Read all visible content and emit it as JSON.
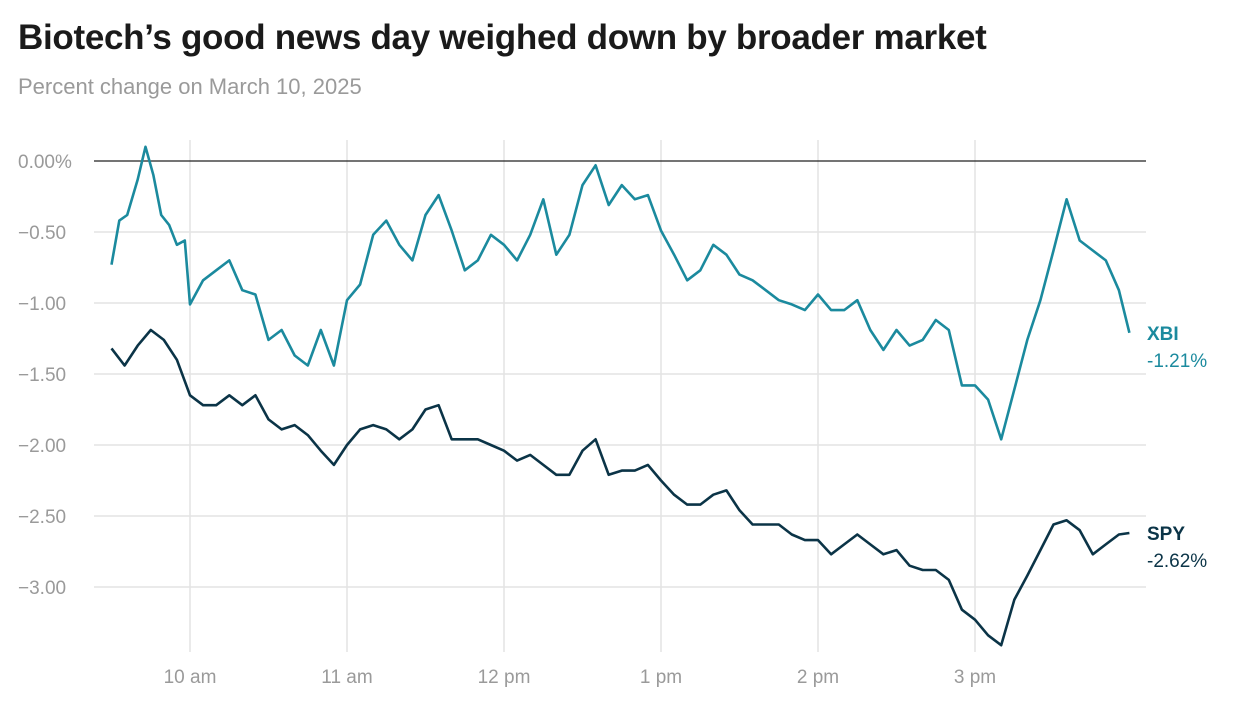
{
  "title": "Biotech’s good news day weighed down by broader market",
  "subtitle": "Percent change on March 10, 2025",
  "chart_data": {
    "type": "line",
    "title": "Biotech’s good news day weighed down by broader market",
    "subtitle": "Percent change on March 10, 2025",
    "xlabel": "",
    "ylabel": "",
    "xlim": [
      "9:30",
      "16:00"
    ],
    "ylim": [
      -3.45,
      0.15
    ],
    "x_ticks": [
      {
        "t": "10:00",
        "label": "10 am"
      },
      {
        "t": "11:00",
        "label": "11 am"
      },
      {
        "t": "12:00",
        "label": "12 pm"
      },
      {
        "t": "13:00",
        "label": "1 pm"
      },
      {
        "t": "14:00",
        "label": "2 pm"
      },
      {
        "t": "15:00",
        "label": "3 pm"
      }
    ],
    "y_ticks": [
      {
        "v": 0,
        "label": "0.00%"
      },
      {
        "v": -0.5,
        "label": "−0.50"
      },
      {
        "v": -1,
        "label": "−1.00"
      },
      {
        "v": -1.5,
        "label": "−1.50"
      },
      {
        "v": -2,
        "label": "−2.00"
      },
      {
        "v": -2.5,
        "label": "−2.50"
      },
      {
        "v": -3,
        "label": "−3.00"
      }
    ],
    "grid": true,
    "legend": "direct labels at right",
    "series": [
      {
        "name": "XBI",
        "end_label": "-1.21%",
        "color": "#1b8a9e",
        "points": [
          [
            "9:30",
            -0.73
          ],
          [
            "9:33",
            -0.42
          ],
          [
            "9:36",
            -0.38
          ],
          [
            "9:40",
            -0.13
          ],
          [
            "9:43",
            0.1
          ],
          [
            "9:46",
            -0.1
          ],
          [
            "9:49",
            -0.38
          ],
          [
            "9:52",
            -0.45
          ],
          [
            "9:55",
            -0.59
          ],
          [
            "9:58",
            -0.56
          ],
          [
            "10:00",
            -1.01
          ],
          [
            "10:05",
            -0.84
          ],
          [
            "10:10",
            -0.77
          ],
          [
            "10:15",
            -0.7
          ],
          [
            "10:20",
            -0.91
          ],
          [
            "10:25",
            -0.94
          ],
          [
            "10:30",
            -1.26
          ],
          [
            "10:35",
            -1.19
          ],
          [
            "10:40",
            -1.37
          ],
          [
            "10:45",
            -1.44
          ],
          [
            "10:50",
            -1.19
          ],
          [
            "10:55",
            -1.44
          ],
          [
            "11:00",
            -0.98
          ],
          [
            "11:05",
            -0.87
          ],
          [
            "11:10",
            -0.52
          ],
          [
            "11:15",
            -0.42
          ],
          [
            "11:20",
            -0.59
          ],
          [
            "11:25",
            -0.7
          ],
          [
            "11:30",
            -0.38
          ],
          [
            "11:35",
            -0.24
          ],
          [
            "11:40",
            -0.49
          ],
          [
            "11:45",
            -0.77
          ],
          [
            "11:50",
            -0.7
          ],
          [
            "11:55",
            -0.52
          ],
          [
            "12:00",
            -0.59
          ],
          [
            "12:05",
            -0.7
          ],
          [
            "12:10",
            -0.52
          ],
          [
            "12:15",
            -0.27
          ],
          [
            "12:20",
            -0.66
          ],
          [
            "12:25",
            -0.52
          ],
          [
            "12:30",
            -0.17
          ],
          [
            "12:35",
            -0.03
          ],
          [
            "12:40",
            -0.31
          ],
          [
            "12:45",
            -0.17
          ],
          [
            "12:50",
            -0.27
          ],
          [
            "12:55",
            -0.24
          ],
          [
            "13:00",
            -0.49
          ],
          [
            "13:05",
            -0.66
          ],
          [
            "13:10",
            -0.84
          ],
          [
            "13:15",
            -0.77
          ],
          [
            "13:20",
            -0.59
          ],
          [
            "13:25",
            -0.66
          ],
          [
            "13:30",
            -0.8
          ],
          [
            "13:35",
            -0.84
          ],
          [
            "13:40",
            -0.91
          ],
          [
            "13:45",
            -0.98
          ],
          [
            "13:50",
            -1.01
          ],
          [
            "13:55",
            -1.05
          ],
          [
            "14:00",
            -0.94
          ],
          [
            "14:05",
            -1.05
          ],
          [
            "14:10",
            -1.05
          ],
          [
            "14:15",
            -0.98
          ],
          [
            "14:20",
            -1.19
          ],
          [
            "14:25",
            -1.33
          ],
          [
            "14:30",
            -1.19
          ],
          [
            "14:35",
            -1.3
          ],
          [
            "14:40",
            -1.26
          ],
          [
            "14:45",
            -1.12
          ],
          [
            "14:50",
            -1.19
          ],
          [
            "14:55",
            -1.58
          ],
          [
            "15:00",
            -1.58
          ],
          [
            "15:05",
            -1.68
          ],
          [
            "15:10",
            -1.96
          ],
          [
            "15:15",
            -1.61
          ],
          [
            "15:20",
            -1.26
          ],
          [
            "15:25",
            -0.98
          ],
          [
            "15:30",
            -0.63
          ],
          [
            "15:35",
            -0.27
          ],
          [
            "15:40",
            -0.56
          ],
          [
            "15:45",
            -0.63
          ],
          [
            "15:50",
            -0.7
          ],
          [
            "15:55",
            -0.91
          ],
          [
            "15:59",
            -1.21
          ]
        ]
      },
      {
        "name": "SPY",
        "end_label": "-2.62%",
        "color": "#0b3447",
        "points": [
          [
            "9:30",
            -1.32
          ],
          [
            "9:35",
            -1.44
          ],
          [
            "9:40",
            -1.3
          ],
          [
            "9:45",
            -1.19
          ],
          [
            "9:50",
            -1.26
          ],
          [
            "9:55",
            -1.4
          ],
          [
            "10:00",
            -1.65
          ],
          [
            "10:05",
            -1.72
          ],
          [
            "10:10",
            -1.72
          ],
          [
            "10:15",
            -1.65
          ],
          [
            "10:20",
            -1.72
          ],
          [
            "10:25",
            -1.65
          ],
          [
            "10:30",
            -1.82
          ],
          [
            "10:35",
            -1.89
          ],
          [
            "10:40",
            -1.86
          ],
          [
            "10:45",
            -1.93
          ],
          [
            "10:50",
            -2.04
          ],
          [
            "10:55",
            -2.14
          ],
          [
            "11:00",
            -2.0
          ],
          [
            "11:05",
            -1.89
          ],
          [
            "11:10",
            -1.86
          ],
          [
            "11:15",
            -1.89
          ],
          [
            "11:20",
            -1.96
          ],
          [
            "11:25",
            -1.89
          ],
          [
            "11:30",
            -1.75
          ],
          [
            "11:35",
            -1.72
          ],
          [
            "11:40",
            -1.96
          ],
          [
            "11:45",
            -1.96
          ],
          [
            "11:50",
            -1.96
          ],
          [
            "11:55",
            -2.0
          ],
          [
            "12:00",
            -2.04
          ],
          [
            "12:05",
            -2.11
          ],
          [
            "12:10",
            -2.07
          ],
          [
            "12:15",
            -2.14
          ],
          [
            "12:20",
            -2.21
          ],
          [
            "12:25",
            -2.21
          ],
          [
            "12:30",
            -2.04
          ],
          [
            "12:35",
            -1.96
          ],
          [
            "12:40",
            -2.21
          ],
          [
            "12:45",
            -2.18
          ],
          [
            "12:50",
            -2.18
          ],
          [
            "12:55",
            -2.14
          ],
          [
            "13:00",
            -2.25
          ],
          [
            "13:05",
            -2.35
          ],
          [
            "13:10",
            -2.42
          ],
          [
            "13:15",
            -2.42
          ],
          [
            "13:20",
            -2.35
          ],
          [
            "13:25",
            -2.32
          ],
          [
            "13:30",
            -2.46
          ],
          [
            "13:35",
            -2.56
          ],
          [
            "13:40",
            -2.56
          ],
          [
            "13:45",
            -2.56
          ],
          [
            "13:50",
            -2.63
          ],
          [
            "13:55",
            -2.67
          ],
          [
            "14:00",
            -2.67
          ],
          [
            "14:05",
            -2.77
          ],
          [
            "14:10",
            -2.7
          ],
          [
            "14:15",
            -2.63
          ],
          [
            "14:20",
            -2.7
          ],
          [
            "14:25",
            -2.77
          ],
          [
            "14:30",
            -2.74
          ],
          [
            "14:35",
            -2.85
          ],
          [
            "14:40",
            -2.88
          ],
          [
            "14:45",
            -2.88
          ],
          [
            "14:50",
            -2.95
          ],
          [
            "14:55",
            -3.16
          ],
          [
            "15:00",
            -3.23
          ],
          [
            "15:05",
            -3.34
          ],
          [
            "15:10",
            -3.41
          ],
          [
            "15:15",
            -3.09
          ],
          [
            "15:20",
            -2.92
          ],
          [
            "15:25",
            -2.74
          ],
          [
            "15:30",
            -2.56
          ],
          [
            "15:35",
            -2.53
          ],
          [
            "15:40",
            -2.6
          ],
          [
            "15:45",
            -2.77
          ],
          [
            "15:50",
            -2.7
          ],
          [
            "15:55",
            -2.63
          ],
          [
            "15:59",
            -2.62
          ]
        ]
      }
    ]
  }
}
